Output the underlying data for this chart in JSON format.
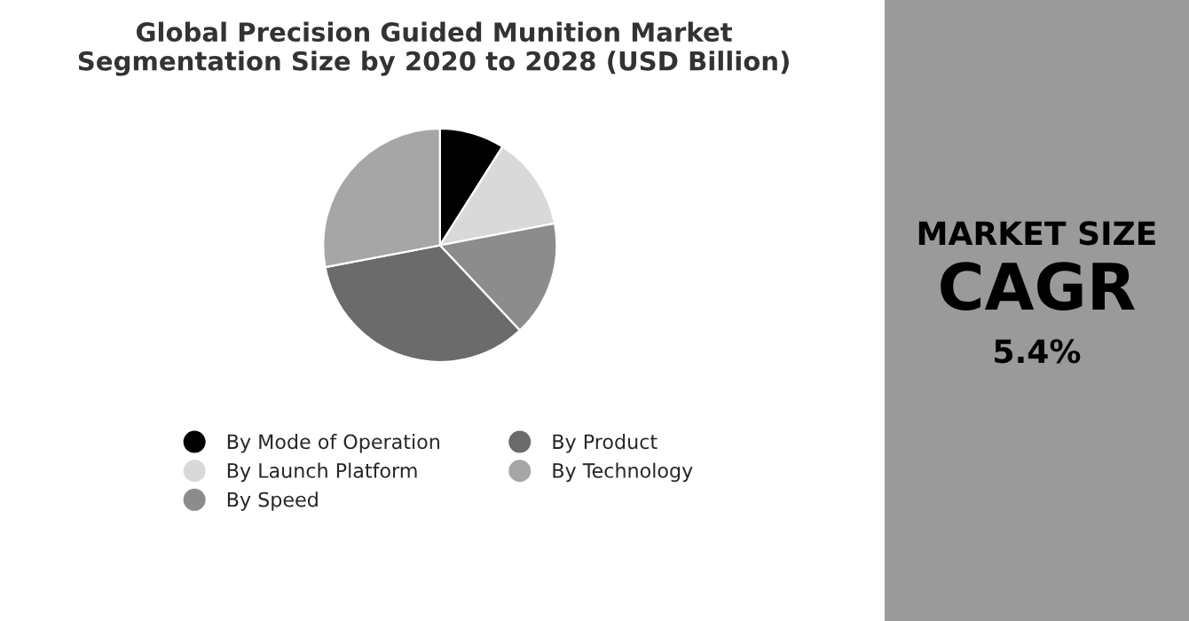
{
  "chart_data": {
    "type": "pie",
    "title": "Global Precision Guided Munition Market\nSegmentation Size by 2020 to 2028 (USD Billion)",
    "categories": [
      "By Mode of Operation",
      "By Launch Platform",
      "By Speed",
      "By Product",
      "By Technology"
    ],
    "values": [
      9,
      13,
      16,
      34,
      28
    ],
    "colors": [
      "#000000",
      "#d9d9d9",
      "#8c8c8c",
      "#6b6b6b",
      "#a6a6a6"
    ],
    "legend": "bottom",
    "annotations": [
      "MARKET SIZE",
      "CAGR",
      "5.4%"
    ]
  }
}
